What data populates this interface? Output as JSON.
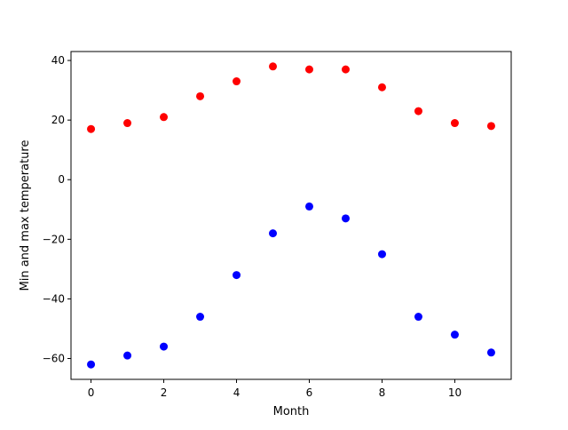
{
  "chart_data": {
    "type": "scatter",
    "xlabel": "Month",
    "ylabel": "Min and max temperature",
    "xlim": [
      -0.55,
      11.55
    ],
    "ylim": [
      -67,
      43
    ],
    "xticks": [
      0,
      2,
      4,
      6,
      8,
      10
    ],
    "yticks": [
      -60,
      -40,
      -20,
      0,
      20,
      40
    ],
    "grid": false,
    "series": [
      {
        "color": "#ff0000",
        "x": [
          0,
          1,
          2,
          3,
          4,
          5,
          6,
          7,
          8,
          9,
          10,
          11
        ],
        "y": [
          17,
          19,
          21,
          28,
          33,
          38,
          37,
          37,
          31,
          23,
          19,
          18
        ]
      },
      {
        "color": "#0000ff",
        "x": [
          0,
          1,
          2,
          3,
          4,
          5,
          6,
          7,
          8,
          9,
          10,
          11
        ],
        "y": [
          -62,
          -59,
          -56,
          -46,
          -32,
          -18,
          -9,
          -13,
          -25,
          -46,
          -52,
          -58
        ]
      }
    ]
  }
}
